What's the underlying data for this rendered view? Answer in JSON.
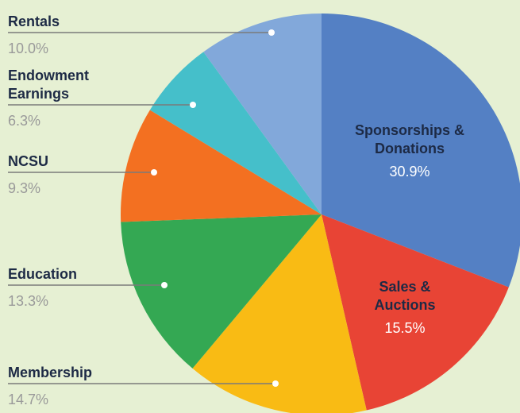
{
  "chart_data": {
    "type": "pie",
    "categories": [
      "Sponsorships & Donations",
      "Sales & Auctions",
      "Membership",
      "Education",
      "NCSU",
      "Endowment Earnings",
      "Rentals"
    ],
    "values": [
      30.9,
      15.5,
      14.7,
      13.3,
      9.3,
      6.3,
      10.0
    ],
    "value_labels": [
      "30.9%",
      "15.5%",
      "14.7%",
      "13.3%",
      "9.3%",
      "6.3%",
      "10.0%"
    ],
    "colors": [
      "#5480c4",
      "#e84435",
      "#f9bb14",
      "#34a853",
      "#f37021",
      "#45bfca",
      "#82a8da"
    ]
  }
}
